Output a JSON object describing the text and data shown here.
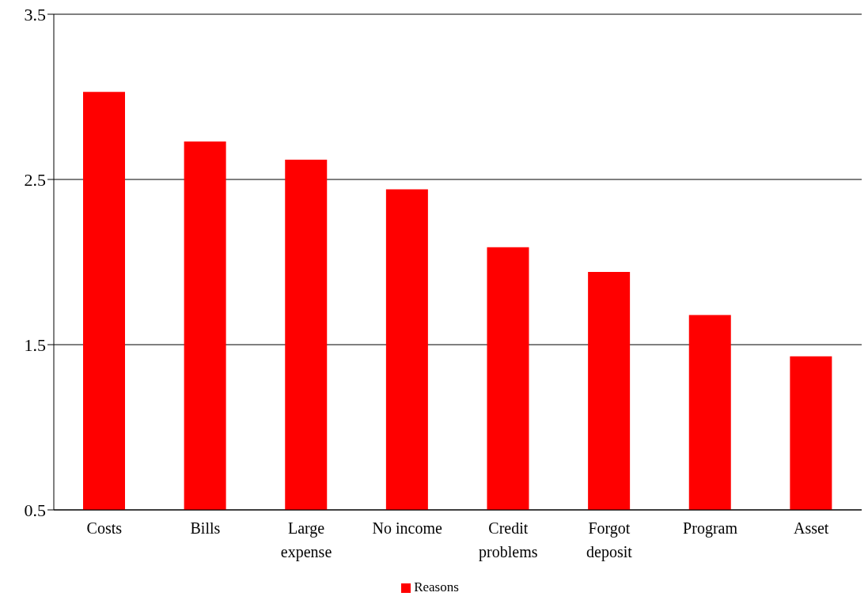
{
  "chart_data": {
    "type": "bar",
    "categories": [
      "Costs",
      "Bills",
      "Large expense",
      "No income",
      "Credit problems",
      "Forgot deposit",
      "Program",
      "Asset"
    ],
    "series": [
      {
        "name": "Reasons",
        "color": "#ff0000",
        "values": [
          3.03,
          2.73,
          2.62,
          2.44,
          2.09,
          1.94,
          1.68,
          1.43
        ]
      }
    ],
    "ylim": [
      0.5,
      3.5
    ],
    "yticks": [
      0.5,
      1.5,
      2.5,
      3.5
    ],
    "grid": "y",
    "legend": "bottom"
  }
}
